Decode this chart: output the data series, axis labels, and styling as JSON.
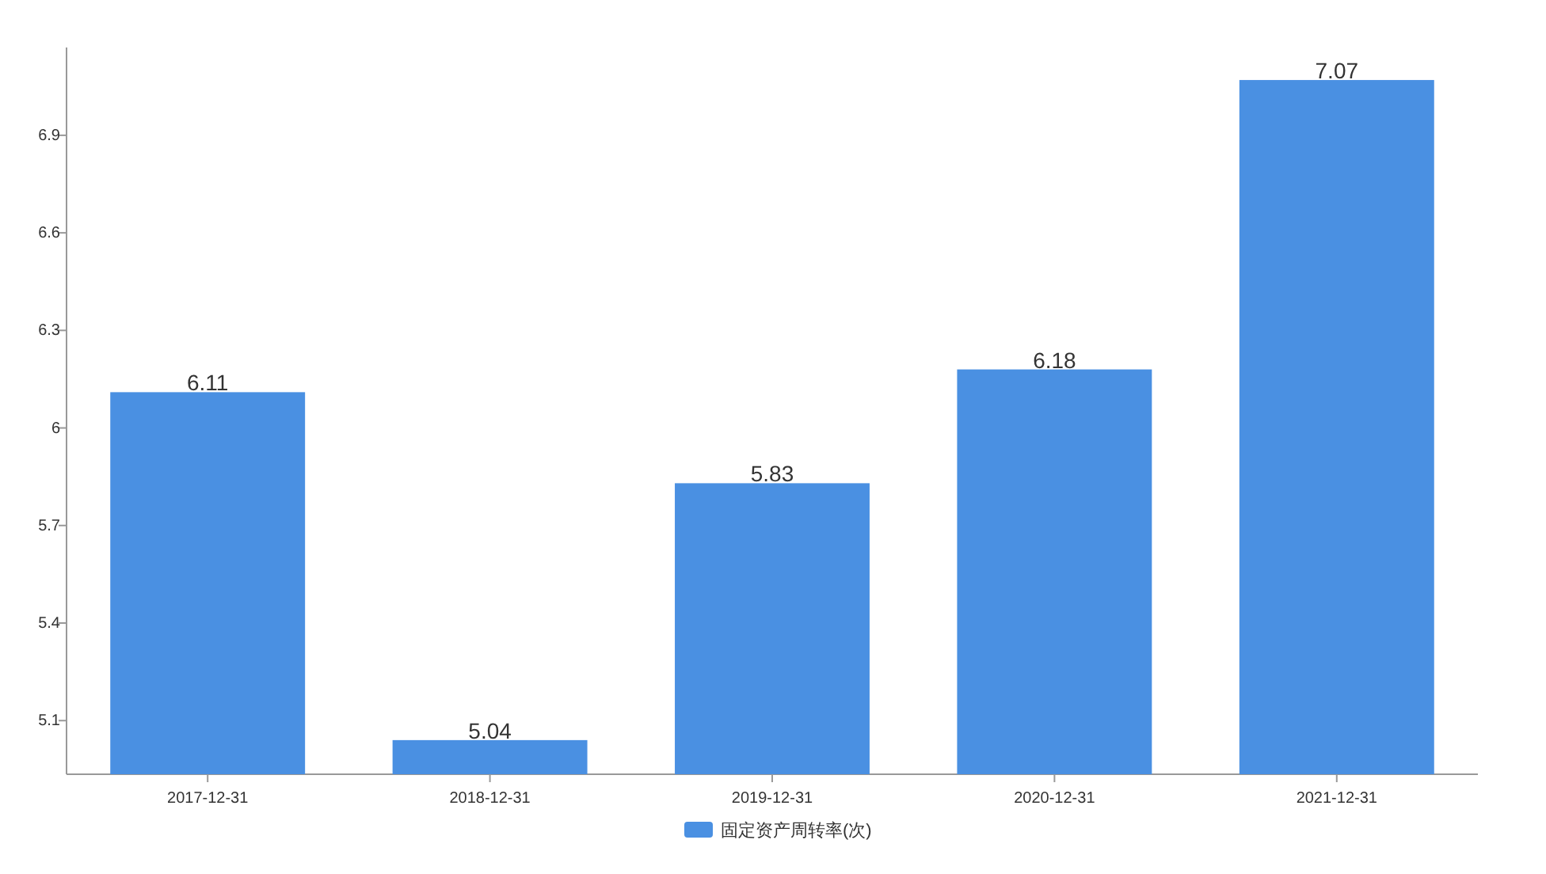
{
  "chart_data": {
    "type": "bar",
    "categories": [
      "2017-12-31",
      "2018-12-31",
      "2019-12-31",
      "2020-12-31",
      "2021-12-31"
    ],
    "series": [
      {
        "name": "固定资产周转率(次)",
        "color": "#4a90e2",
        "values": [
          6.11,
          5.04,
          5.83,
          6.18,
          7.07
        ]
      }
    ],
    "ylim": [
      4.935,
      7.17
    ],
    "yticks": [
      5.1,
      5.4,
      5.7,
      6,
      6.3,
      6.6,
      6.9
    ],
    "data_labels": true,
    "legend": "bottom"
  }
}
